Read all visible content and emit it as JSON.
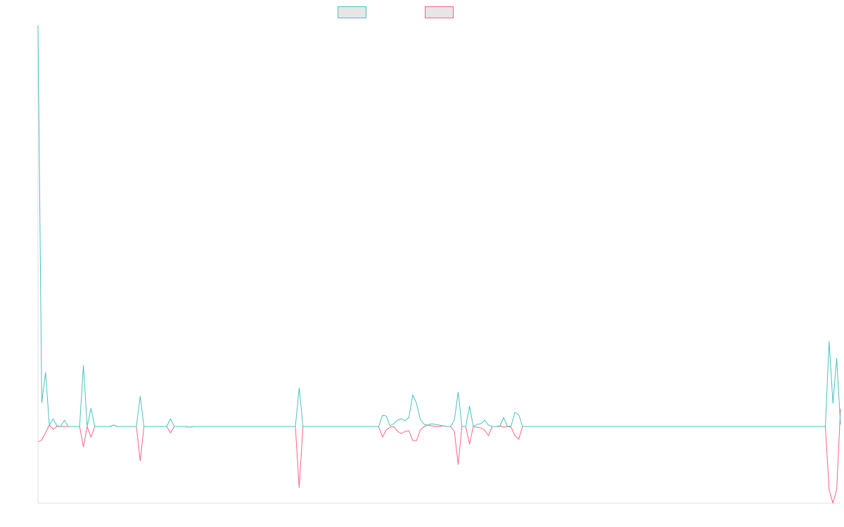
{
  "chart_data": {
    "type": "line",
    "ylim": [
      -109,
      571
    ],
    "series": [
      {
        "color": "#4bc0c0",
        "values": [
          571,
          34,
          77,
          2,
          11,
          1,
          0,
          9,
          0,
          0,
          0,
          0,
          87,
          0,
          26,
          0,
          0,
          0,
          0,
          0,
          2,
          0,
          0,
          0,
          0,
          0,
          0,
          43,
          0,
          0,
          0,
          0,
          0,
          0,
          0,
          11,
          0,
          0,
          0,
          0,
          -1,
          0,
          0,
          0,
          0,
          0,
          0,
          0,
          0,
          0,
          0,
          0,
          0,
          0,
          0,
          0,
          0,
          0,
          0,
          0,
          0,
          0,
          0,
          0,
          0,
          0,
          0,
          0,
          0,
          55,
          0,
          0,
          0,
          0,
          0,
          0,
          0,
          0,
          0,
          0,
          0,
          0,
          0,
          0,
          0,
          0,
          0,
          0,
          0,
          0,
          0,
          16,
          15,
          1,
          4,
          9,
          11,
          8,
          13,
          45,
          33,
          10,
          3,
          2,
          4,
          3,
          2,
          1,
          0,
          0,
          9,
          49,
          0,
          0,
          29,
          0,
          3,
          4,
          9,
          2,
          0,
          0,
          0,
          13,
          0,
          1,
          20,
          17,
          0,
          0,
          0,
          0,
          0,
          0,
          0,
          0,
          0,
          0,
          0,
          0,
          0,
          0,
          0,
          0,
          0,
          0,
          0,
          0,
          0,
          0,
          0,
          0,
          0,
          0,
          0,
          0,
          0,
          0,
          0,
          0,
          0,
          0,
          0,
          0,
          0,
          0,
          0,
          0,
          0,
          0,
          0,
          0,
          0,
          0,
          0,
          0,
          0,
          0,
          0,
          0,
          0,
          0,
          0,
          0,
          0,
          0,
          0,
          0,
          0,
          0,
          0,
          0,
          0,
          0,
          0,
          0,
          0,
          0,
          0,
          0,
          0,
          0,
          0,
          0,
          0,
          0,
          0,
          0,
          0,
          121,
          33,
          97,
          3
        ]
      },
      {
        "color": "#ff6384",
        "values": [
          -22,
          -19,
          -9,
          2,
          -4,
          0,
          0,
          0,
          0,
          0,
          0,
          0,
          -29,
          0,
          -15,
          0,
          0,
          0,
          0,
          0,
          2,
          0,
          0,
          0,
          0,
          0,
          0,
          -49,
          0,
          0,
          0,
          0,
          0,
          0,
          0,
          -9,
          0,
          0,
          0,
          0,
          -1,
          0,
          0,
          0,
          0,
          0,
          0,
          0,
          0,
          0,
          0,
          0,
          0,
          0,
          0,
          0,
          0,
          0,
          0,
          0,
          0,
          0,
          0,
          0,
          0,
          0,
          0,
          0,
          0,
          -87,
          0,
          0,
          0,
          0,
          0,
          0,
          0,
          0,
          0,
          0,
          0,
          0,
          0,
          0,
          0,
          0,
          0,
          0,
          0,
          0,
          0,
          -15,
          -5,
          -1,
          0,
          -7,
          -10,
          -7,
          -6,
          -20,
          -20,
          -5,
          0,
          2,
          1,
          0,
          0,
          1,
          0,
          0,
          -7,
          -54,
          0,
          0,
          -25,
          0,
          -1,
          -2,
          -5,
          -13,
          0,
          0,
          1,
          -1,
          0,
          -1,
          -13,
          -18,
          0,
          0,
          0,
          0,
          0,
          0,
          0,
          0,
          0,
          0,
          0,
          0,
          0,
          0,
          0,
          0,
          0,
          0,
          0,
          0,
          0,
          0,
          0,
          0,
          0,
          0,
          0,
          0,
          0,
          0,
          0,
          0,
          0,
          0,
          0,
          0,
          0,
          0,
          0,
          0,
          0,
          0,
          0,
          0,
          0,
          0,
          0,
          0,
          0,
          0,
          0,
          0,
          0,
          0,
          0,
          0,
          0,
          0,
          0,
          0,
          0,
          0,
          0,
          0,
          0,
          0,
          0,
          0,
          0,
          0,
          0,
          0,
          0,
          0,
          0,
          0,
          0,
          0,
          0,
          0,
          0,
          -90,
          -109,
          -90,
          25
        ]
      }
    ]
  }
}
